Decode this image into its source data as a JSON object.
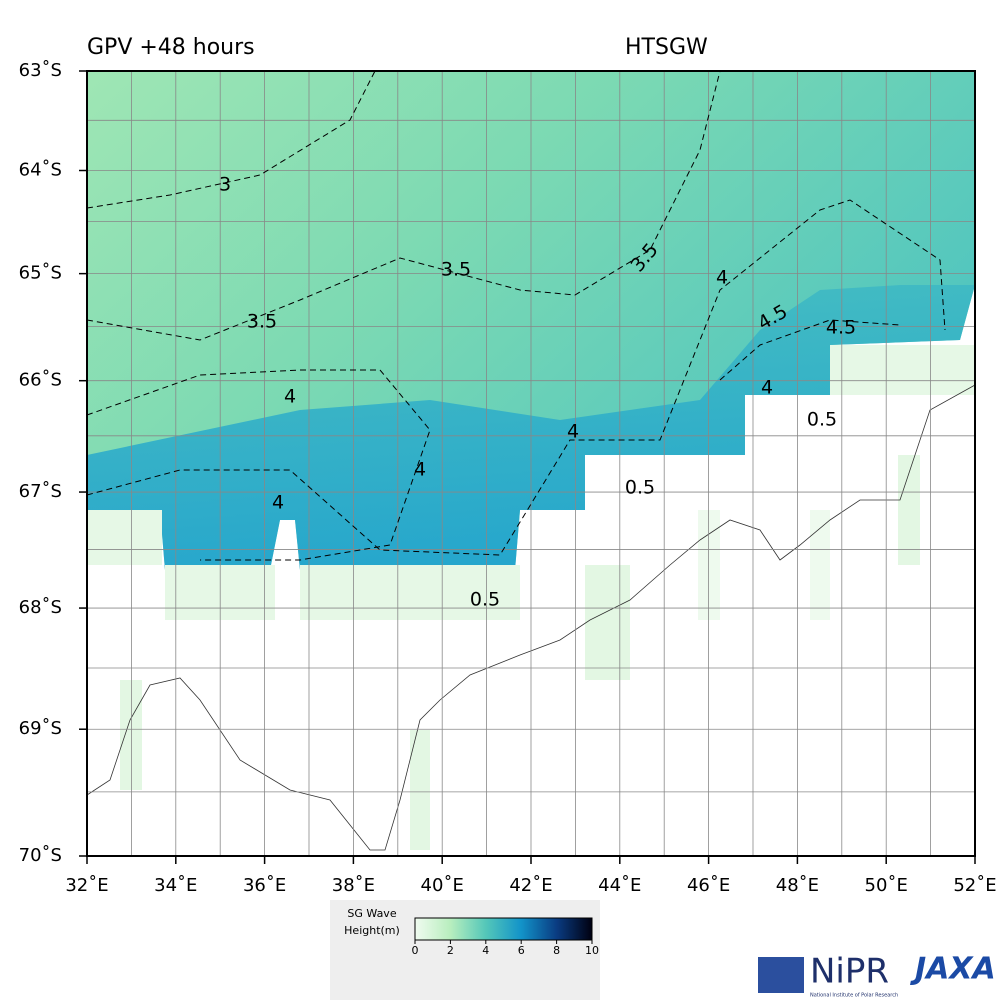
{
  "map": {
    "title": "GPV +48 hours",
    "variable": "HTSGW",
    "ylim": [
      -63,
      -70
    ],
    "xlim": [
      32,
      52
    ],
    "yticks": [
      {
        "value": -63,
        "label": "63˚S"
      },
      {
        "value": -64,
        "label": "64˚S"
      },
      {
        "value": -65,
        "label": "65˚S"
      },
      {
        "value": -66,
        "label": "66˚S"
      },
      {
        "value": -67,
        "label": "67˚S"
      },
      {
        "value": -68,
        "label": "68˚S"
      },
      {
        "value": -69,
        "label": "69˚S"
      },
      {
        "value": -70,
        "label": "70˚S"
      }
    ],
    "xticks": [
      {
        "value": 32,
        "label": "32˚E"
      },
      {
        "value": 34,
        "label": "34˚E"
      },
      {
        "value": 36,
        "label": "36˚E"
      },
      {
        "value": 38,
        "label": "38˚E"
      },
      {
        "value": 40,
        "label": "40˚E"
      },
      {
        "value": 42,
        "label": "42˚E"
      },
      {
        "value": 44,
        "label": "44˚E"
      },
      {
        "value": 46,
        "label": "46˚E"
      },
      {
        "value": 48,
        "label": "48˚E"
      },
      {
        "value": 50,
        "label": "50˚E"
      },
      {
        "value": 52,
        "label": "52˚E"
      }
    ],
    "contour_labels": [
      "3",
      "3.5",
      "3.5",
      "3.5",
      "4",
      "4",
      "4",
      "4.5",
      "4.5",
      "4",
      "4",
      "4",
      "0.5",
      "0.5",
      "0.5"
    ],
    "colorbar": {
      "label": [
        "SG Wave",
        "Height(m)"
      ],
      "lim": [
        0,
        10
      ],
      "ticks": [
        0,
        2,
        4,
        6,
        8,
        10
      ]
    },
    "logos": {
      "nipr": "NiPR",
      "nipr_sub": "National Institute of Polar Research",
      "jaxa": "JAXA"
    }
  }
}
